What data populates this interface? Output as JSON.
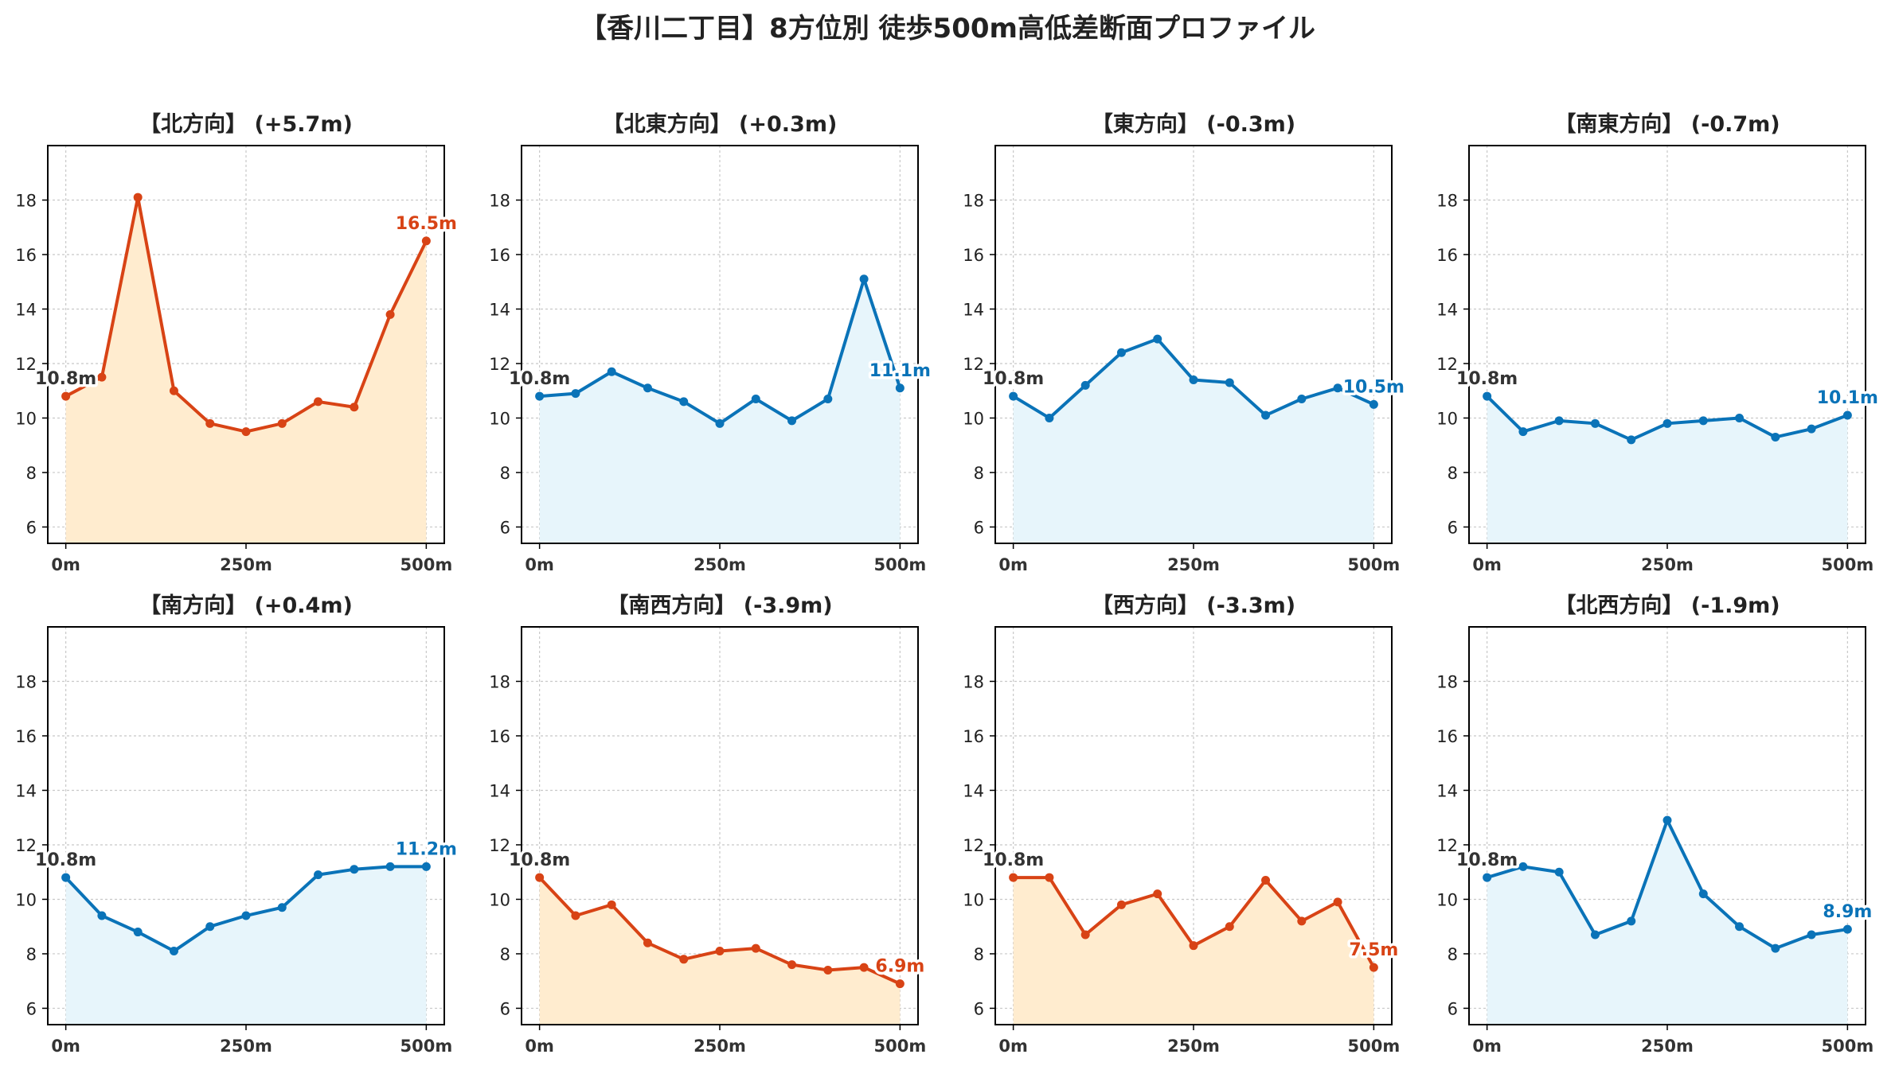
{
  "title": "【香川二丁目】8方位別 徒歩500m高低差断面プロファイル",
  "colors": {
    "up": "#D84315",
    "down": "#0A73B8",
    "fill_up": "#FFECCF",
    "fill_down": "#E7F5FB",
    "start_label": "#333333"
  },
  "chart_data": [
    {
      "type": "line",
      "title": "【北方向】 (+5.7m)",
      "series": [
        {
          "x": [
            0,
            50,
            100,
            150,
            200,
            250,
            300,
            350,
            400,
            450,
            500
          ],
          "values": [
            10.8,
            11.5,
            18.1,
            11.0,
            9.8,
            9.5,
            9.8,
            10.6,
            10.4,
            13.8,
            16.5
          ]
        }
      ],
      "start_label": "10.8m",
      "end_label": "16.5m",
      "trend": "up",
      "xticks": [
        "0m",
        "250m",
        "500m"
      ],
      "yticks": [
        6,
        8,
        10,
        12,
        14,
        16,
        18
      ],
      "ylim": [
        5.4,
        20
      ],
      "xlim": [
        -25,
        525
      ],
      "grid": true
    },
    {
      "type": "line",
      "title": "【北東方向】 (+0.3m)",
      "series": [
        {
          "x": [
            0,
            50,
            100,
            150,
            200,
            250,
            300,
            350,
            400,
            450,
            500
          ],
          "values": [
            10.8,
            10.9,
            11.7,
            11.1,
            10.6,
            9.8,
            10.7,
            9.9,
            10.7,
            15.1,
            11.1
          ]
        }
      ],
      "start_label": "10.8m",
      "end_label": "11.1m",
      "trend": "down",
      "xticks": [
        "0m",
        "250m",
        "500m"
      ],
      "yticks": [
        6,
        8,
        10,
        12,
        14,
        16,
        18
      ],
      "ylim": [
        5.4,
        20
      ],
      "xlim": [
        -25,
        525
      ],
      "grid": true
    },
    {
      "type": "line",
      "title": "【東方向】 (-0.3m)",
      "series": [
        {
          "x": [
            0,
            50,
            100,
            150,
            200,
            250,
            300,
            350,
            400,
            450,
            500
          ],
          "values": [
            10.8,
            10.0,
            11.2,
            12.4,
            12.9,
            11.4,
            11.3,
            10.1,
            10.7,
            11.1,
            10.5
          ]
        }
      ],
      "start_label": "10.8m",
      "end_label": "10.5m",
      "trend": "down",
      "xticks": [
        "0m",
        "250m",
        "500m"
      ],
      "yticks": [
        6,
        8,
        10,
        12,
        14,
        16,
        18
      ],
      "ylim": [
        5.4,
        20
      ],
      "xlim": [
        -25,
        525
      ],
      "grid": true
    },
    {
      "type": "line",
      "title": "【南東方向】 (-0.7m)",
      "series": [
        {
          "x": [
            0,
            50,
            100,
            150,
            200,
            250,
            300,
            350,
            400,
            450,
            500
          ],
          "values": [
            10.8,
            9.5,
            9.9,
            9.8,
            9.2,
            9.8,
            9.9,
            10.0,
            9.3,
            9.6,
            10.1
          ]
        }
      ],
      "start_label": "10.8m",
      "end_label": "10.1m",
      "trend": "down",
      "xticks": [
        "0m",
        "250m",
        "500m"
      ],
      "yticks": [
        6,
        8,
        10,
        12,
        14,
        16,
        18
      ],
      "ylim": [
        5.4,
        20
      ],
      "xlim": [
        -25,
        525
      ],
      "grid": true
    },
    {
      "type": "line",
      "title": "【南方向】 (+0.4m)",
      "series": [
        {
          "x": [
            0,
            50,
            100,
            150,
            200,
            250,
            300,
            350,
            400,
            450,
            500
          ],
          "values": [
            10.8,
            9.4,
            8.8,
            8.1,
            9.0,
            9.4,
            9.7,
            10.9,
            11.1,
            11.2,
            11.2
          ]
        }
      ],
      "start_label": "10.8m",
      "end_label": "11.2m",
      "trend": "down",
      "xticks": [
        "0m",
        "250m",
        "500m"
      ],
      "yticks": [
        6,
        8,
        10,
        12,
        14,
        16,
        18
      ],
      "ylim": [
        5.4,
        20
      ],
      "xlim": [
        -25,
        525
      ],
      "grid": true
    },
    {
      "type": "line",
      "title": "【南西方向】 (-3.9m)",
      "series": [
        {
          "x": [
            0,
            50,
            100,
            150,
            200,
            250,
            300,
            350,
            400,
            450,
            500
          ],
          "values": [
            10.8,
            9.4,
            9.8,
            8.4,
            7.8,
            8.1,
            8.2,
            7.6,
            7.4,
            7.5,
            6.9
          ]
        }
      ],
      "start_label": "10.8m",
      "end_label": "6.9m",
      "trend": "up",
      "xticks": [
        "0m",
        "250m",
        "500m"
      ],
      "yticks": [
        6,
        8,
        10,
        12,
        14,
        16,
        18
      ],
      "ylim": [
        5.4,
        20
      ],
      "xlim": [
        -25,
        525
      ],
      "grid": true
    },
    {
      "type": "line",
      "title": "【西方向】 (-3.3m)",
      "series": [
        {
          "x": [
            0,
            50,
            100,
            150,
            200,
            250,
            300,
            350,
            400,
            450,
            500
          ],
          "values": [
            10.8,
            10.8,
            8.7,
            9.8,
            10.2,
            8.3,
            9.0,
            10.7,
            9.2,
            9.9,
            7.5
          ]
        }
      ],
      "start_label": "10.8m",
      "end_label": "7.5m",
      "trend": "up",
      "xticks": [
        "0m",
        "250m",
        "500m"
      ],
      "yticks": [
        6,
        8,
        10,
        12,
        14,
        16,
        18
      ],
      "ylim": [
        5.4,
        20
      ],
      "xlim": [
        -25,
        525
      ],
      "grid": true
    },
    {
      "type": "line",
      "title": "【北西方向】 (-1.9m)",
      "series": [
        {
          "x": [
            0,
            50,
            100,
            150,
            200,
            250,
            300,
            350,
            400,
            450,
            500
          ],
          "values": [
            10.8,
            11.2,
            11.0,
            8.7,
            9.2,
            12.9,
            10.2,
            9.0,
            8.2,
            8.7,
            8.9
          ]
        }
      ],
      "start_label": "10.8m",
      "end_label": "8.9m",
      "trend": "down",
      "xticks": [
        "0m",
        "250m",
        "500m"
      ],
      "yticks": [
        6,
        8,
        10,
        12,
        14,
        16,
        18
      ],
      "ylim": [
        5.4,
        20
      ],
      "xlim": [
        -25,
        525
      ],
      "grid": true
    }
  ]
}
